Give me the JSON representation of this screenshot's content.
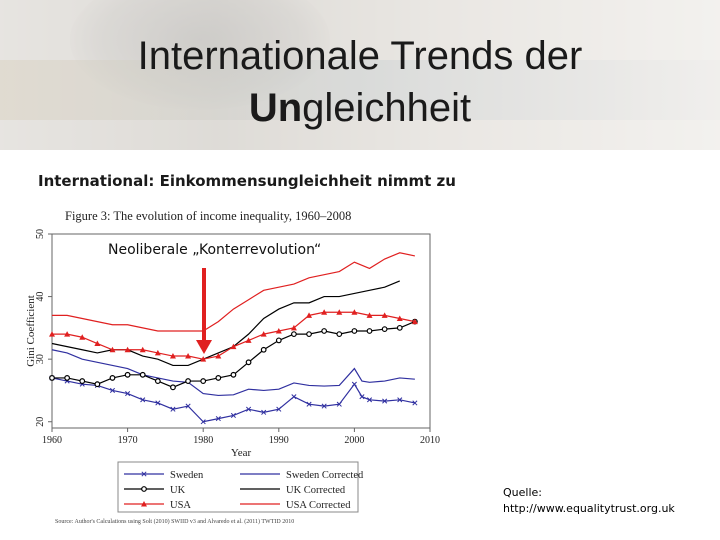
{
  "slide": {
    "title_line1": "Internationale Trends der",
    "title_line2_bold": "Un",
    "title_line2_rest": "gleichheit",
    "subtitle": "International: Einkommensungleichheit nimmt zu",
    "source_label": "Quelle:",
    "source_url": "http://www.equalitytrust.org.uk"
  },
  "chart_data": {
    "type": "line",
    "title": "Figure 3:  The evolution of income inequality, 1960–2008",
    "xlabel": "Year",
    "ylabel": "Gini Coefficient",
    "xlim": [
      1960,
      2010
    ],
    "ylim": [
      19,
      50
    ],
    "xticks": [
      1960,
      1970,
      1980,
      1990,
      2000,
      2010
    ],
    "yticks": [
      20,
      30,
      40,
      50
    ],
    "annotation": "Neoliberale „Konterrevolution“",
    "annotation_arrow_color": "#e02020",
    "footnote": "Source: Author's Calculations using Solt (2010) SWIID v3 and Alvaredo et al. (2011) TWTID 2010",
    "legend_position": "bottom",
    "series": [
      {
        "name": "Sweden",
        "color": "#3030a0",
        "style": "solid",
        "marker": "x",
        "x": [
          1960,
          1962,
          1964,
          1966,
          1968,
          1970,
          1972,
          1974,
          1976,
          1978,
          1980,
          1982,
          1984,
          1986,
          1988,
          1990,
          1992,
          1994,
          1996,
          1998,
          2000,
          2001,
          2002,
          2004,
          2006,
          2008
        ],
        "y": [
          27,
          26.5,
          26,
          25.8,
          25,
          24.5,
          23.5,
          23,
          22,
          22.5,
          20,
          20.5,
          21,
          22,
          21.5,
          22,
          24,
          22.8,
          22.5,
          22.8,
          26,
          24,
          23.5,
          23.3,
          23.5,
          23
        ]
      },
      {
        "name": "Sweden Corrected",
        "color": "#3030a0",
        "style": "solid",
        "marker": "none",
        "x": [
          1960,
          1962,
          1964,
          1966,
          1968,
          1970,
          1972,
          1974,
          1976,
          1978,
          1980,
          1982,
          1984,
          1986,
          1988,
          1990,
          1992,
          1994,
          1996,
          1998,
          2000,
          2001,
          2002,
          2004,
          2006,
          2008
        ],
        "y": [
          31.5,
          31,
          30,
          29.5,
          29,
          28.5,
          27.5,
          27,
          26.5,
          26.3,
          24.5,
          24.2,
          24.3,
          25.2,
          25,
          25.2,
          26.2,
          25.8,
          25.7,
          25.8,
          28.5,
          26.5,
          26.3,
          26.5,
          27,
          26.8
        ]
      },
      {
        "name": "UK",
        "color": "#000000",
        "style": "solid",
        "marker": "circle",
        "x": [
          1960,
          1962,
          1964,
          1966,
          1968,
          1970,
          1972,
          1974,
          1976,
          1978,
          1980,
          1982,
          1984,
          1986,
          1988,
          1990,
          1992,
          1994,
          1996,
          1998,
          2000,
          2002,
          2004,
          2006,
          2008
        ],
        "y": [
          27,
          27,
          26.5,
          26,
          27,
          27.5,
          27.5,
          26.5,
          25.5,
          26.5,
          26.5,
          27,
          27.5,
          29.5,
          31.5,
          33,
          34,
          34,
          34.5,
          34,
          34.5,
          34.5,
          34.8,
          35,
          36
        ]
      },
      {
        "name": "UK Corrected",
        "color": "#000000",
        "style": "solid",
        "marker": "none",
        "x": [
          1960,
          1962,
          1964,
          1966,
          1968,
          1970,
          1972,
          1974,
          1976,
          1978,
          1980,
          1982,
          1984,
          1986,
          1988,
          1990,
          1992,
          1994,
          1996,
          1998,
          2000,
          2002,
          2004,
          2006
        ],
        "y": [
          32.5,
          32,
          31.5,
          31,
          31.5,
          31.5,
          30.5,
          30,
          29,
          29,
          30,
          31,
          32,
          34,
          36.5,
          38,
          39,
          39,
          40,
          40,
          40.5,
          41,
          41.5,
          42.5
        ]
      },
      {
        "name": "USA",
        "color": "#e02020",
        "style": "solid",
        "marker": "triangle",
        "x": [
          1960,
          1962,
          1964,
          1966,
          1968,
          1970,
          1972,
          1974,
          1976,
          1978,
          1980,
          1982,
          1984,
          1986,
          1988,
          1990,
          1992,
          1994,
          1996,
          1998,
          2000,
          2002,
          2004,
          2006,
          2008
        ],
        "y": [
          34,
          34,
          33.5,
          32.5,
          31.5,
          31.5,
          31.5,
          31,
          30.5,
          30.5,
          30,
          30.5,
          32,
          33,
          34,
          34.5,
          35,
          37,
          37.5,
          37.5,
          37.5,
          37,
          37,
          36.5,
          36
        ]
      },
      {
        "name": "USA Corrected",
        "color": "#e02020",
        "style": "solid",
        "marker": "none",
        "x": [
          1960,
          1962,
          1964,
          1966,
          1968,
          1970,
          1972,
          1974,
          1976,
          1978,
          1980,
          1982,
          1984,
          1986,
          1988,
          1990,
          1992,
          1994,
          1996,
          1998,
          2000,
          2002,
          2004,
          2006,
          2008
        ],
        "y": [
          37,
          37,
          36.5,
          36,
          35.5,
          35.5,
          35,
          34.5,
          34.5,
          34.5,
          34.5,
          36,
          38,
          39.5,
          41,
          41.5,
          42,
          43,
          43.5,
          44,
          45.5,
          44.5,
          46,
          47,
          46.5
        ]
      }
    ]
  }
}
